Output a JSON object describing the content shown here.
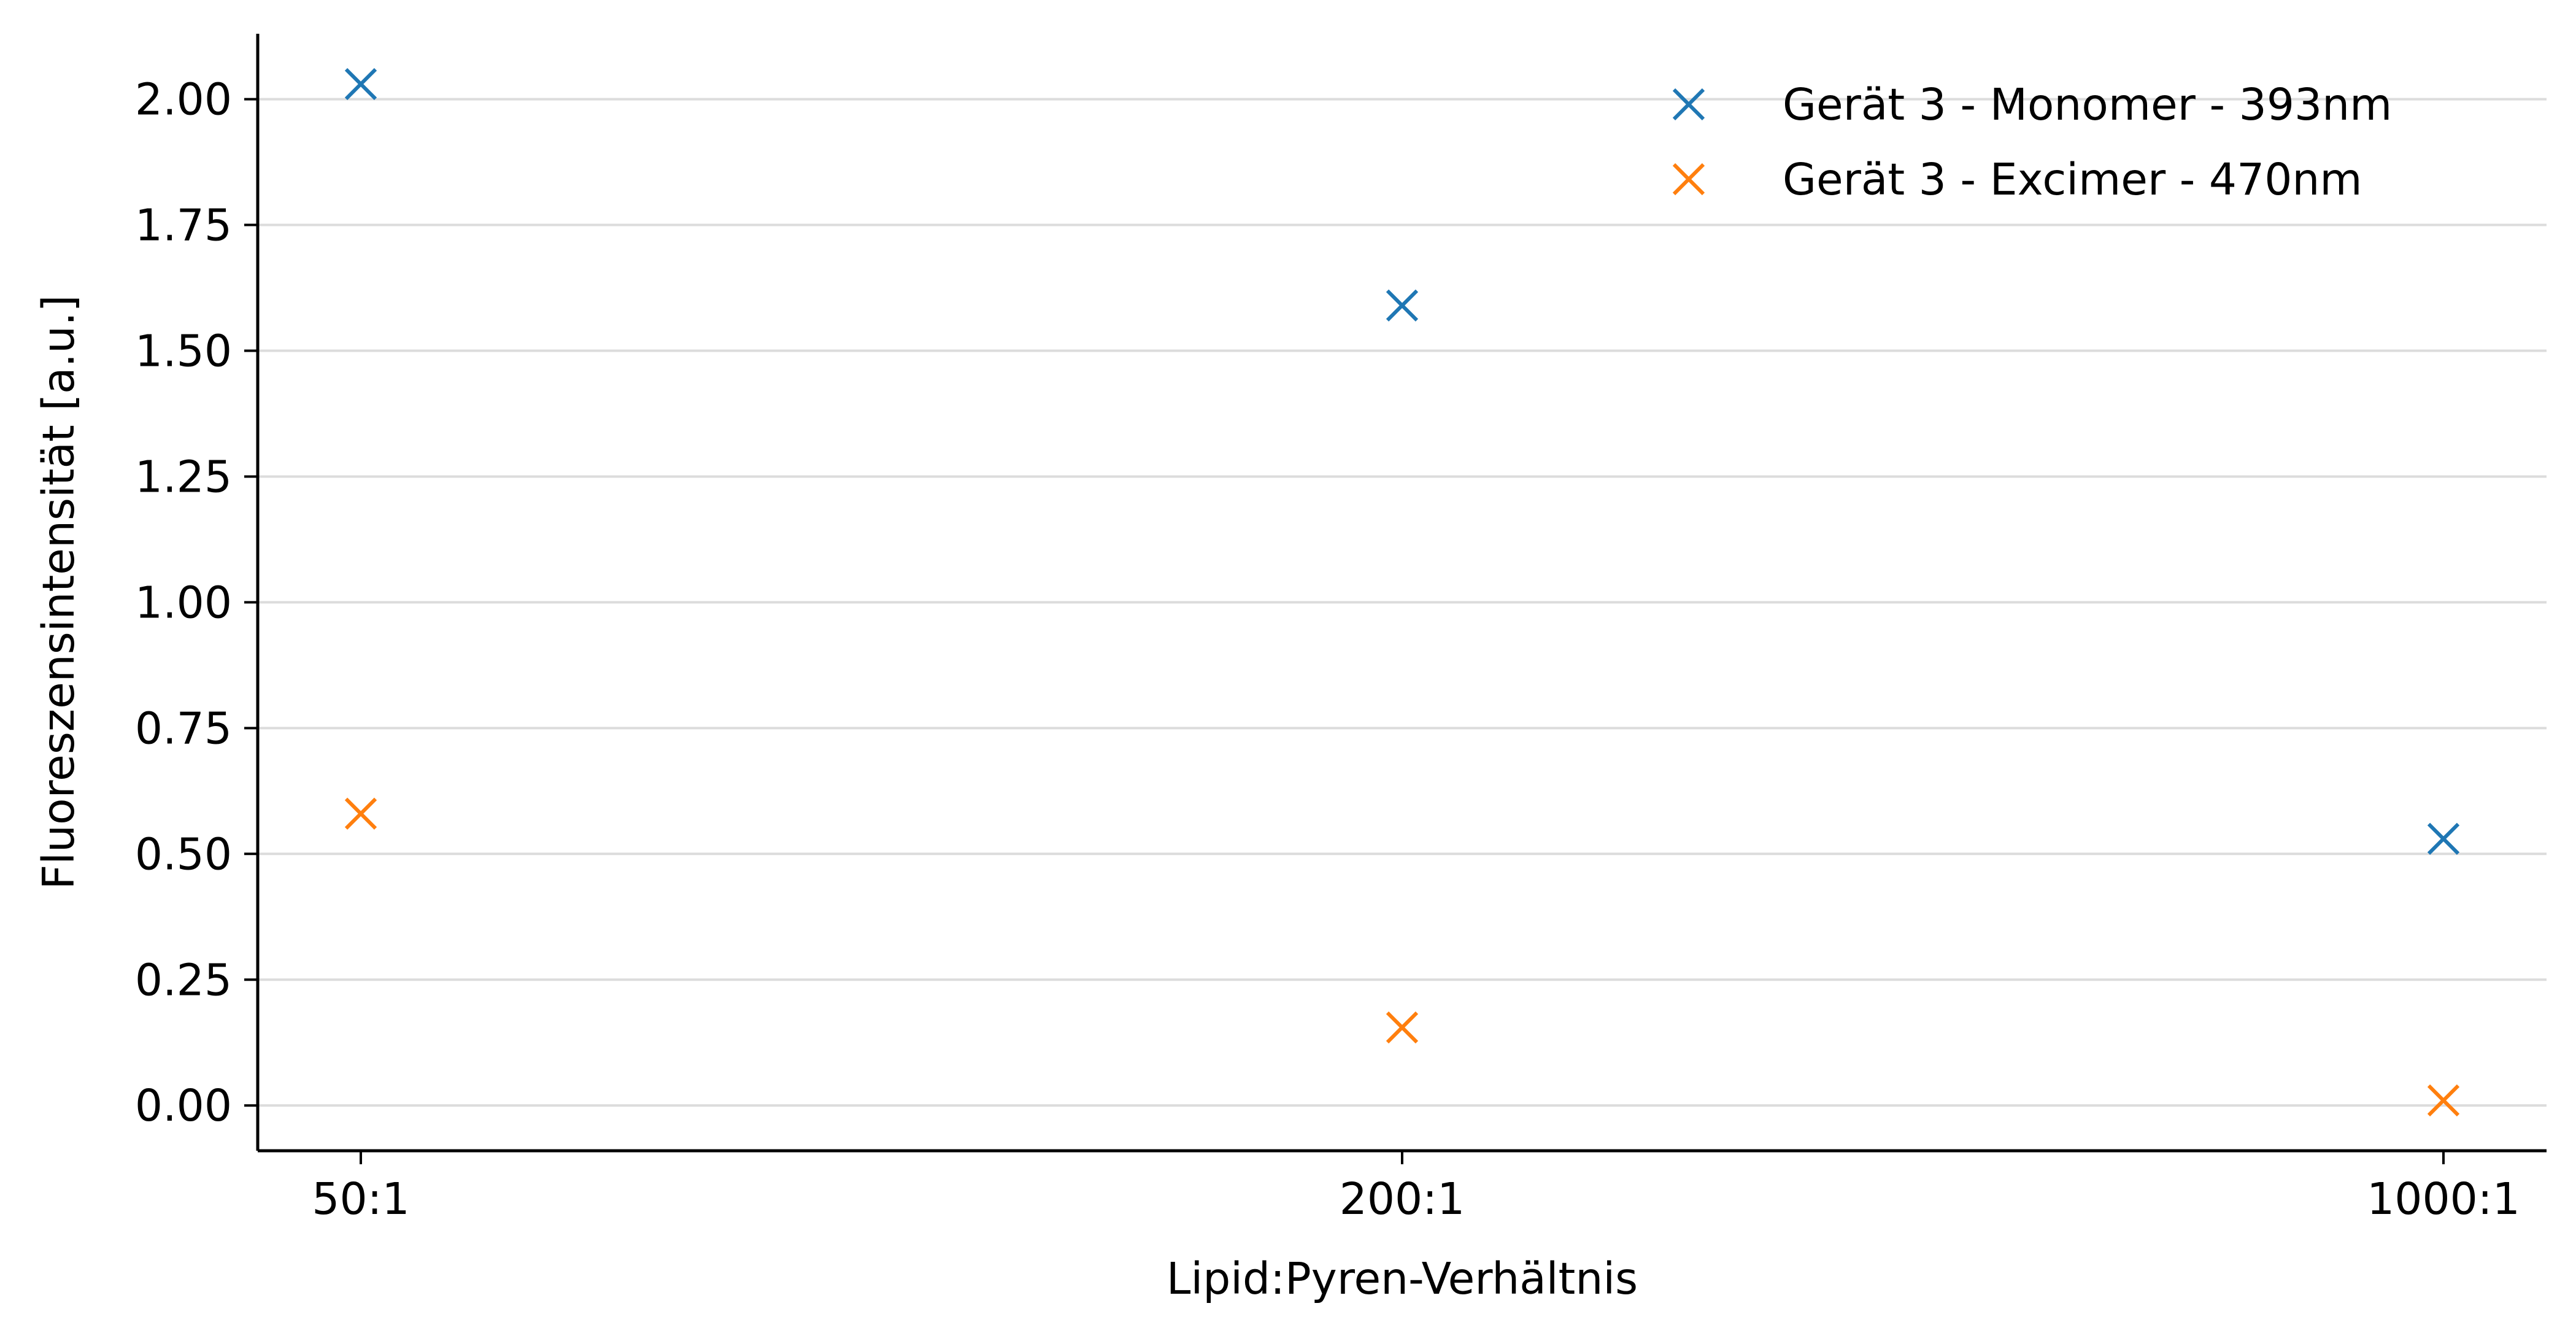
{
  "chart_data": {
    "type": "scatter",
    "title": "",
    "xlabel": "Lipid:Pyren-Verhältnis",
    "ylabel": "Fluoreszensintensität [a.u.]",
    "categories": [
      "50:1",
      "200:1",
      "1000:1"
    ],
    "ylim": [
      -0.09,
      2.13
    ],
    "yticks": [
      "0.00",
      "0.25",
      "0.50",
      "0.75",
      "1.00",
      "1.25",
      "1.50",
      "1.75",
      "2.00"
    ],
    "ytick_values": [
      0,
      0.25,
      0.5,
      0.75,
      1.0,
      1.25,
      1.5,
      1.75,
      2.0
    ],
    "grid": "horizontal",
    "legend_position": "top-right",
    "marker": "x",
    "series": [
      {
        "name": "Gerät 3 - Monomer - 393nm",
        "color": "#1f77b4",
        "values": [
          2.03,
          1.59,
          0.53
        ]
      },
      {
        "name": "Gerät 3 - Excimer - 470nm",
        "color": "#ff7f0e",
        "values": [
          0.58,
          0.155,
          0.01
        ]
      }
    ]
  }
}
